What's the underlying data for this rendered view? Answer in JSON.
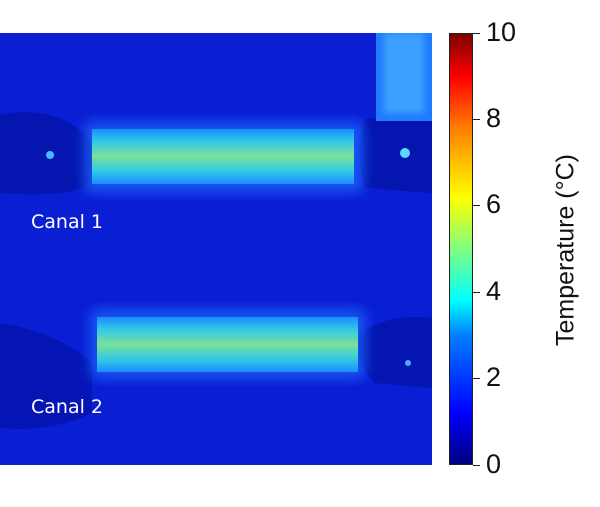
{
  "image": {
    "labels": [
      "Canal 1",
      "Canal 2"
    ]
  },
  "colorbar": {
    "title": "Temperature (°C)",
    "min": 0,
    "max": 10,
    "ticks": [
      "0",
      "2",
      "4",
      "6",
      "8",
      "10"
    ],
    "colormap": "jet"
  },
  "colors": {
    "background_blue": "#0a1fd6",
    "channel_core": "#6fe39a",
    "channel_edge": "#1aa8ff"
  }
}
